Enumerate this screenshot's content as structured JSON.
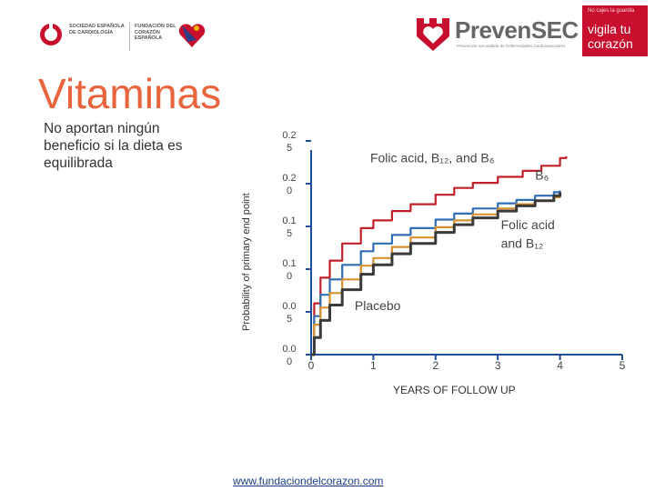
{
  "header": {
    "left_logo": {
      "society_text": "SOCIEDAD ESPAÑOLA DE CARDIOLOGÍA",
      "foundation_text": "FUNDACIÓN DEL CORAZÓN ESPAÑOLA",
      "colors": {
        "red": "#c8102e",
        "gray": "#777777"
      }
    },
    "right_logo": {
      "name": "PrevenSEC",
      "subtitle": "Prevención Secundaria de Enfermedades Cardiovasculares",
      "tagline_top": "No cajes la guardia",
      "tagline_line1": "vigila tu",
      "tagline_line2": "corazón",
      "colors": {
        "red": "#c8102e",
        "gray": "#666666"
      }
    }
  },
  "slide": {
    "title": "Vitaminas",
    "bullet": "No aportan ningún beneficio si la dieta es equilibrada",
    "title_color": "#e8643c"
  },
  "footer": {
    "link": "www.fundaciondelcorazon.com"
  },
  "chart_data": {
    "type": "line",
    "ylabel": "Probability of primary end point",
    "xlabel": "YEARS OF FOLLOW UP",
    "x_ticks": [
      {
        "value": 0,
        "label": "0"
      },
      {
        "value": 1,
        "label": "1"
      },
      {
        "value": 2,
        "label": "2"
      },
      {
        "value": 3,
        "label": "3"
      },
      {
        "value": 4,
        "label": "4"
      },
      {
        "value": 5,
        "label": "5"
      }
    ],
    "y_ticks": [
      {
        "value": 0.0,
        "line1": "0.0",
        "line2": "0"
      },
      {
        "value": 0.05,
        "line1": "0.0",
        "line2": "5"
      },
      {
        "value": 0.1,
        "line1": "0.1",
        "line2": "0"
      },
      {
        "value": 0.15,
        "line1": "0.1",
        "line2": "5"
      },
      {
        "value": 0.2,
        "line1": "0.2",
        "line2": "0"
      },
      {
        "value": 0.25,
        "line1": "0.2",
        "line2": "5"
      }
    ],
    "xlim": [
      0,
      5
    ],
    "ylim": [
      0,
      0.25
    ],
    "grid": false,
    "annotations": [
      {
        "text": "Folic acid, B₁₂, and B₆",
        "x": 0.95,
        "y": 0.225,
        "color": "#444444"
      },
      {
        "text": "B₆",
        "x": 3.6,
        "y": 0.205,
        "color": "#444444"
      },
      {
        "text": "Folic acid",
        "x": 3.05,
        "y": 0.147,
        "color": "#444444"
      },
      {
        "text": "and B₁₂",
        "x": 3.05,
        "y": 0.125,
        "color": "#444444"
      },
      {
        "text": "Placebo",
        "x": 0.7,
        "y": 0.052,
        "color": "#444444"
      }
    ],
    "series": [
      {
        "color": "#c0202a",
        "x": [
          0.0,
          0.05,
          0.15,
          0.3,
          0.5,
          0.8,
          1.0,
          1.3,
          1.6,
          2.0,
          2.3,
          2.6,
          3.0,
          3.4,
          3.7,
          4.0,
          4.1
        ],
        "y": [
          0.0,
          0.06,
          0.09,
          0.11,
          0.13,
          0.148,
          0.157,
          0.168,
          0.176,
          0.187,
          0.195,
          0.201,
          0.208,
          0.215,
          0.221,
          0.23,
          0.232
        ]
      },
      {
        "color": "#2f6db5",
        "x": [
          0.0,
          0.05,
          0.15,
          0.3,
          0.5,
          0.8,
          1.0,
          1.3,
          1.6,
          2.0,
          2.3,
          2.6,
          3.0,
          3.3,
          3.6,
          3.9,
          4.0
        ],
        "y": [
          0.0,
          0.045,
          0.07,
          0.088,
          0.105,
          0.121,
          0.13,
          0.14,
          0.148,
          0.158,
          0.165,
          0.171,
          0.177,
          0.181,
          0.186,
          0.19,
          0.192
        ]
      },
      {
        "color": "#d9902f",
        "x": [
          0.0,
          0.05,
          0.15,
          0.3,
          0.5,
          0.8,
          1.0,
          1.3,
          1.6,
          2.0,
          2.3,
          2.6,
          3.0,
          3.3,
          3.6,
          3.9,
          4.0
        ],
        "y": [
          0.0,
          0.035,
          0.055,
          0.072,
          0.088,
          0.104,
          0.113,
          0.126,
          0.137,
          0.149,
          0.157,
          0.164,
          0.171,
          0.176,
          0.18,
          0.184,
          0.186
        ]
      },
      {
        "color": "#3a3a3a",
        "x": [
          0.0,
          0.05,
          0.15,
          0.3,
          0.5,
          0.8,
          1.0,
          1.3,
          1.6,
          2.0,
          2.3,
          2.6,
          3.0,
          3.3,
          3.6,
          3.9,
          4.0
        ],
        "y": [
          0.0,
          0.02,
          0.04,
          0.058,
          0.076,
          0.094,
          0.105,
          0.118,
          0.13,
          0.143,
          0.152,
          0.16,
          0.168,
          0.174,
          0.18,
          0.186,
          0.19
        ]
      }
    ]
  }
}
